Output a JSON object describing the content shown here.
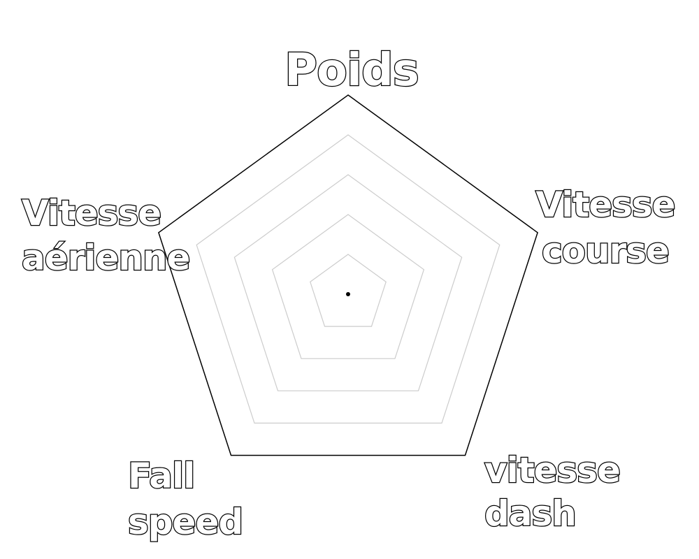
{
  "chart_data": {
    "type": "radar",
    "axes": [
      {
        "lines": [
          "Poids"
        ]
      },
      {
        "lines": [
          "Vitesse",
          "course"
        ]
      },
      {
        "lines": [
          "vitesse",
          "dash"
        ]
      },
      {
        "lines": [
          "Fall",
          "speed"
        ]
      },
      {
        "lines": [
          "Vitesse",
          "aérienne"
        ]
      }
    ],
    "rings": 5,
    "values": [
      0,
      0,
      0,
      0,
      0
    ],
    "colors": {
      "outer_ring": "#000000",
      "inner_rings": "#cccccc",
      "center_dot": "#000000",
      "label_fill": "#ffffff",
      "label_outline": "#000000"
    }
  }
}
